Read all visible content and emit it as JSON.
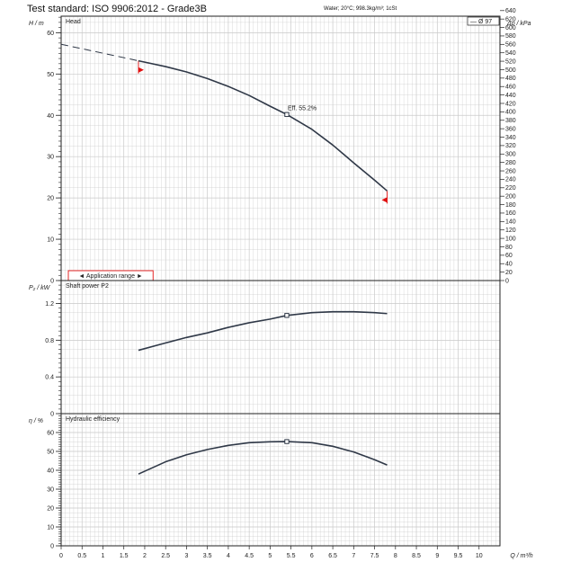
{
  "header": {
    "title": "Test standard: ISO 9906:2012 - Grade3B",
    "conditions": "Water; 20°C; 998.3kg/m³; 1cSt"
  },
  "colors": {
    "curve": "#2f3847",
    "marker_red": "#e01010",
    "grid": "#c9c9c9",
    "axis": "#222222"
  },
  "chart_data": [
    {
      "type": "line",
      "panel_label": "Head",
      "ylabel": "H / m",
      "y2label": "Δp / kPa",
      "xlabel": "Q / m³/h",
      "xlim": [
        0,
        10.5
      ],
      "ylim": [
        0,
        64
      ],
      "y_ticks": [
        0,
        10,
        20,
        30,
        40,
        50,
        60
      ],
      "y2_ticks": [
        0,
        20,
        40,
        60,
        80,
        100,
        120,
        140,
        160,
        180,
        200,
        220,
        240,
        260,
        280,
        300,
        320,
        340,
        360,
        380,
        400,
        420,
        440,
        460,
        480,
        500,
        520,
        540,
        560,
        580,
        600,
        620,
        640
      ],
      "legend": "— Ø 97",
      "legend_position": "top-right",
      "series": [
        {
          "name": "Ø 97",
          "x": [
            1.85,
            2.5,
            3.0,
            3.5,
            4.0,
            4.5,
            5.0,
            5.4,
            6.0,
            6.5,
            7.0,
            7.5,
            7.8
          ],
          "values": [
            53.2,
            51.8,
            50.5,
            48.9,
            47.0,
            44.8,
            42.2,
            40.2,
            36.6,
            32.8,
            28.5,
            24.3,
            21.7
          ]
        }
      ],
      "extrapolation": {
        "x": [
          0,
          1.85
        ],
        "values": [
          57.2,
          53.2
        ]
      },
      "duty_point": {
        "x": 5.4,
        "y": 40.2,
        "label": "Eff.  55.2%"
      },
      "range_markers": [
        {
          "x": 1.85,
          "y": 51
        },
        {
          "x": 7.8,
          "y": 19.5
        }
      ],
      "application_range_label": "◄ Application range ►",
      "application_range_x": [
        0,
        2.2
      ]
    },
    {
      "type": "line",
      "panel_label": "Shaft power P2",
      "ylabel": "P₂ / kW",
      "xlim": [
        0,
        10.5
      ],
      "ylim": [
        0,
        1.45
      ],
      "y_ticks": [
        0,
        0.4,
        0.8,
        1.2
      ],
      "series": [
        {
          "name": "Shaft power P2",
          "x": [
            1.85,
            2.5,
            3.0,
            3.5,
            4.0,
            4.5,
            5.0,
            5.4,
            6.0,
            6.5,
            7.0,
            7.5,
            7.8
          ],
          "values": [
            0.69,
            0.77,
            0.83,
            0.88,
            0.94,
            0.99,
            1.03,
            1.07,
            1.1,
            1.11,
            1.11,
            1.1,
            1.09
          ]
        }
      ],
      "duty_point": {
        "x": 5.4,
        "y": 1.07
      }
    },
    {
      "type": "line",
      "panel_label": "Hydraulic efficiency",
      "ylabel": "η / %",
      "xlabel": "Q / m³/h",
      "xlim": [
        0,
        10.5
      ],
      "ylim": [
        0,
        70
      ],
      "y_ticks": [
        0,
        10,
        20,
        30,
        40,
        50,
        60
      ],
      "x_ticks": [
        0,
        0.5,
        1,
        1.5,
        2,
        2.5,
        3,
        3.5,
        4,
        4.5,
        5,
        5.5,
        6,
        6.5,
        7,
        7.5,
        8,
        8.5,
        9,
        9.5,
        10
      ],
      "x_tick_labels": [
        "0",
        "0.5",
        "1",
        "1.5",
        "2",
        "2.5",
        "3",
        "3.5",
        "4",
        "4.5",
        "5",
        "5.5",
        "6",
        "6.5",
        "7",
        "7.5",
        "8",
        "8.5",
        "9",
        "9.5",
        "10"
      ],
      "series": [
        {
          "name": "Hydraulic efficiency",
          "x": [
            1.85,
            2.5,
            3.0,
            3.5,
            4.0,
            4.5,
            5.0,
            5.4,
            6.0,
            6.5,
            7.0,
            7.5,
            7.8
          ],
          "values": [
            38.0,
            44.5,
            48.2,
            51.0,
            53.2,
            54.6,
            55.1,
            55.2,
            54.6,
            52.7,
            49.7,
            45.6,
            42.8
          ]
        }
      ],
      "duty_point": {
        "x": 5.4,
        "y": 55.2
      }
    }
  ]
}
